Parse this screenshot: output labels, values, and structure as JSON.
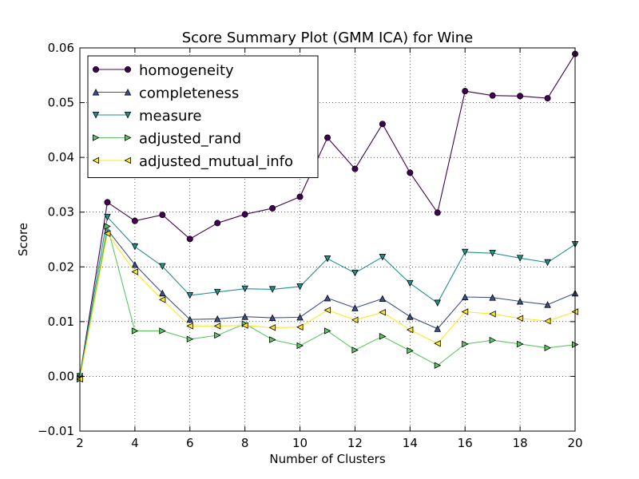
{
  "chart_data": {
    "type": "line",
    "title": "Score Summary Plot (GMM ICA) for Wine",
    "xlabel": "Number of Clusters",
    "ylabel": "Score",
    "xlim": [
      2,
      20
    ],
    "ylim": [
      -0.01,
      0.06
    ],
    "x_ticks": [
      "2",
      "4",
      "6",
      "8",
      "10",
      "12",
      "14",
      "16",
      "18",
      "20"
    ],
    "y_ticks": [
      "−0.01",
      "0.00",
      "0.01",
      "0.02",
      "0.03",
      "0.04",
      "0.05",
      "0.06"
    ],
    "grid": true,
    "legend_position": "top-left",
    "x": [
      2,
      3,
      4,
      5,
      6,
      7,
      8,
      9,
      10,
      11,
      12,
      13,
      14,
      15,
      16,
      17,
      18,
      19,
      20
    ],
    "series": [
      {
        "name": "homogeneity",
        "marker": "circle",
        "color": "#440154",
        "values": [
          0.0,
          0.0318,
          0.0284,
          0.0295,
          0.0251,
          0.028,
          0.0296,
          0.0307,
          0.0328,
          0.0436,
          0.0379,
          0.0461,
          0.0372,
          0.0299,
          0.0521,
          0.0513,
          0.0512,
          0.0508,
          0.0589
        ]
      },
      {
        "name": "completeness",
        "marker": "triangle-up",
        "color": "#3b528b",
        "values": [
          0.0,
          0.0268,
          0.0204,
          0.0152,
          0.0104,
          0.0105,
          0.0109,
          0.0107,
          0.0108,
          0.0143,
          0.0125,
          0.0142,
          0.0109,
          0.0087,
          0.0145,
          0.0144,
          0.0137,
          0.0131,
          0.0152
        ]
      },
      {
        "name": "measure",
        "marker": "triangle-down",
        "color": "#21918c",
        "values": [
          0.0,
          0.0291,
          0.0237,
          0.0201,
          0.0148,
          0.0154,
          0.016,
          0.0159,
          0.0164,
          0.0215,
          0.0189,
          0.0218,
          0.017,
          0.0134,
          0.0227,
          0.0225,
          0.0216,
          0.0208,
          0.0241
        ]
      },
      {
        "name": "adjusted_rand",
        "marker": "triangle-right",
        "color": "#5ec962",
        "values": [
          -0.0005,
          0.0274,
          0.0083,
          0.0083,
          0.0068,
          0.0075,
          0.0096,
          0.0067,
          0.0056,
          0.0083,
          0.0048,
          0.0073,
          0.0047,
          0.002,
          0.0059,
          0.0066,
          0.0059,
          0.0052,
          0.0058
        ]
      },
      {
        "name": "adjusted_mutual_info",
        "marker": "triangle-left",
        "color": "#fde725",
        "values": [
          -0.0005,
          0.0261,
          0.0191,
          0.014,
          0.0092,
          0.0092,
          0.0093,
          0.0089,
          0.009,
          0.0121,
          0.0103,
          0.0117,
          0.0085,
          0.006,
          0.0118,
          0.0114,
          0.0106,
          0.0101,
          0.0118
        ]
      }
    ]
  }
}
